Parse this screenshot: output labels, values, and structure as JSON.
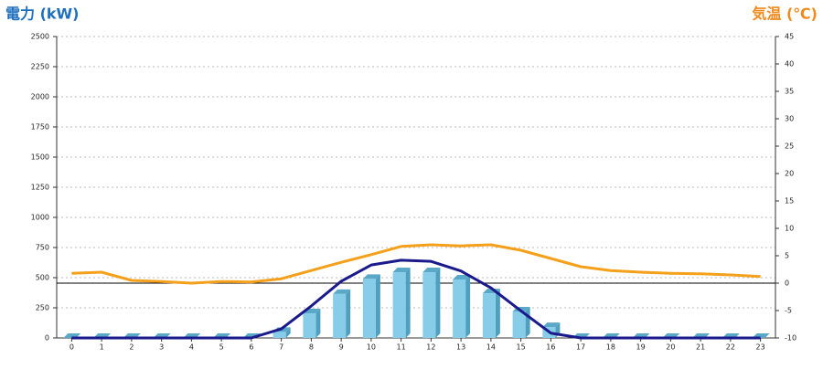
{
  "chart_data": {
    "type": "bar-line",
    "y_axis_title": "電力 (kW)",
    "y2_axis_title": "気温 (℃)",
    "categories": [
      "0",
      "1",
      "2",
      "3",
      "4",
      "5",
      "6",
      "7",
      "8",
      "9",
      "10",
      "11",
      "12",
      "13",
      "14",
      "15",
      "16",
      "17",
      "18",
      "19",
      "20",
      "21",
      "22",
      "23"
    ],
    "series": [
      {
        "type": "bar",
        "color": "#87cdea",
        "axis": "y",
        "values": [
          0,
          0,
          0,
          0,
          0,
          0,
          0,
          50,
          205,
          365,
          490,
          545,
          545,
          485,
          370,
          220,
          90,
          0,
          0,
          0,
          0,
          0,
          0,
          0
        ]
      },
      {
        "type": "line",
        "color": "#1a1a8c",
        "axis": "y",
        "values": [
          0,
          0,
          0,
          0,
          0,
          0,
          0,
          75,
          265,
          470,
          605,
          645,
          635,
          555,
          415,
          225,
          40,
          0,
          0,
          0,
          0,
          0,
          0,
          0
        ]
      },
      {
        "type": "line",
        "color": "#f5a01a",
        "axis": "y2",
        "values": [
          1.8,
          2.0,
          0.5,
          0.3,
          0,
          0.3,
          0.2,
          0.8,
          2.3,
          3.8,
          5.2,
          6.7,
          7,
          6.8,
          7,
          6,
          4.5,
          3,
          2.3,
          2,
          1.8,
          1.7,
          1.5,
          1.2
        ]
      }
    ],
    "ylim": [
      0,
      2500
    ],
    "yticks": [
      0,
      250,
      500,
      750,
      1000,
      1250,
      1500,
      1750,
      2000,
      2250,
      2500
    ],
    "y2lim": [
      -10,
      45
    ],
    "y2ticks": [
      -10,
      -5,
      0,
      5,
      10,
      15,
      20,
      25,
      30,
      35,
      40,
      45
    ],
    "grid": true
  }
}
